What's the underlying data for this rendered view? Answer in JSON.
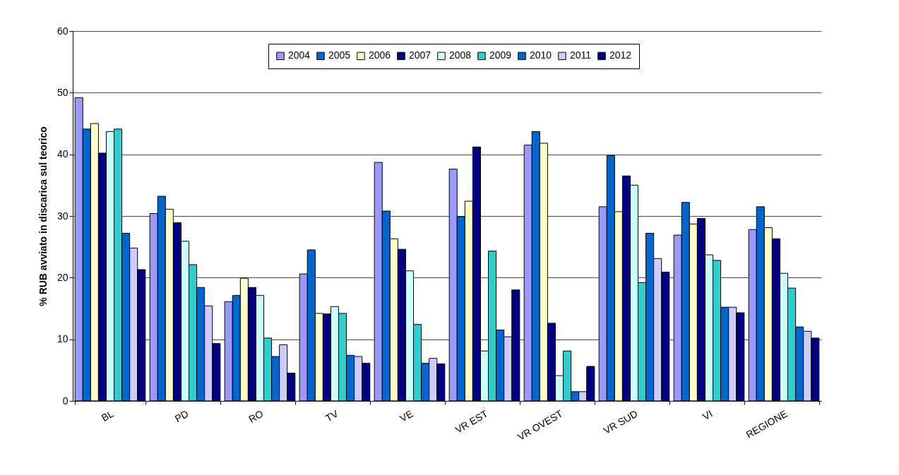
{
  "chart_data": {
    "type": "bar",
    "ylabel": "% RUB avviato in discarica sul teorico",
    "categories": [
      "BL",
      "PD",
      "RO",
      "TV",
      "VE",
      "VR EST",
      "VR OVEST",
      "VR SUD",
      "VI",
      "REGIONE"
    ],
    "series": [
      {
        "name": "2004",
        "color": "#9999ff",
        "values": [
          49.2,
          30.4,
          16.1,
          20.6,
          38.7,
          37.6,
          41.5,
          31.5,
          26.9,
          27.8
        ]
      },
      {
        "name": "2005",
        "color": "#0066cc",
        "values": [
          44.1,
          33.2,
          17.1,
          24.5,
          30.8,
          29.9,
          43.7,
          39.8,
          32.2,
          31.5
        ]
      },
      {
        "name": "2006",
        "color": "#ffffcc",
        "values": [
          45,
          31.1,
          19.9,
          14.2,
          26.3,
          32.4,
          41.8,
          30.7,
          28.7,
          28.1
        ]
      },
      {
        "name": "2007",
        "color": "#000080",
        "values": [
          40.2,
          28.9,
          18.4,
          14.1,
          24.6,
          41.2,
          12.6,
          36.5,
          29.6,
          26.3
        ]
      },
      {
        "name": "2008",
        "color": "#ccffff",
        "values": [
          43.7,
          25.9,
          17.1,
          15.3,
          21.1,
          8.1,
          4.1,
          35,
          23.7,
          20.7
        ]
      },
      {
        "name": "2009",
        "color": "#33cccc",
        "values": [
          44.1,
          22.1,
          10.2,
          14.2,
          12.4,
          24.3,
          8.1,
          19.2,
          22.8,
          18.3
        ]
      },
      {
        "name": "2010",
        "color": "#0066cc",
        "values": [
          27.2,
          18.4,
          7.2,
          7.4,
          6.1,
          11.5,
          1.5,
          27.2,
          15.2,
          12
        ]
      },
      {
        "name": "2011",
        "color": "#ccccff",
        "values": [
          24.8,
          15.4,
          9.1,
          7.2,
          6.9,
          10.4,
          1.5,
          23.1,
          15.2,
          11.3
        ]
      },
      {
        "name": "2012",
        "color": "#000080",
        "values": [
          21.3,
          9.3,
          4.5,
          6.1,
          6,
          18,
          5.6,
          20.9,
          14.3,
          10.2
        ]
      }
    ],
    "ylim": [
      0,
      60
    ],
    "yticks": [
      0,
      10,
      20,
      30,
      40,
      50,
      60
    ],
    "grid": "y",
    "legend": "top"
  }
}
